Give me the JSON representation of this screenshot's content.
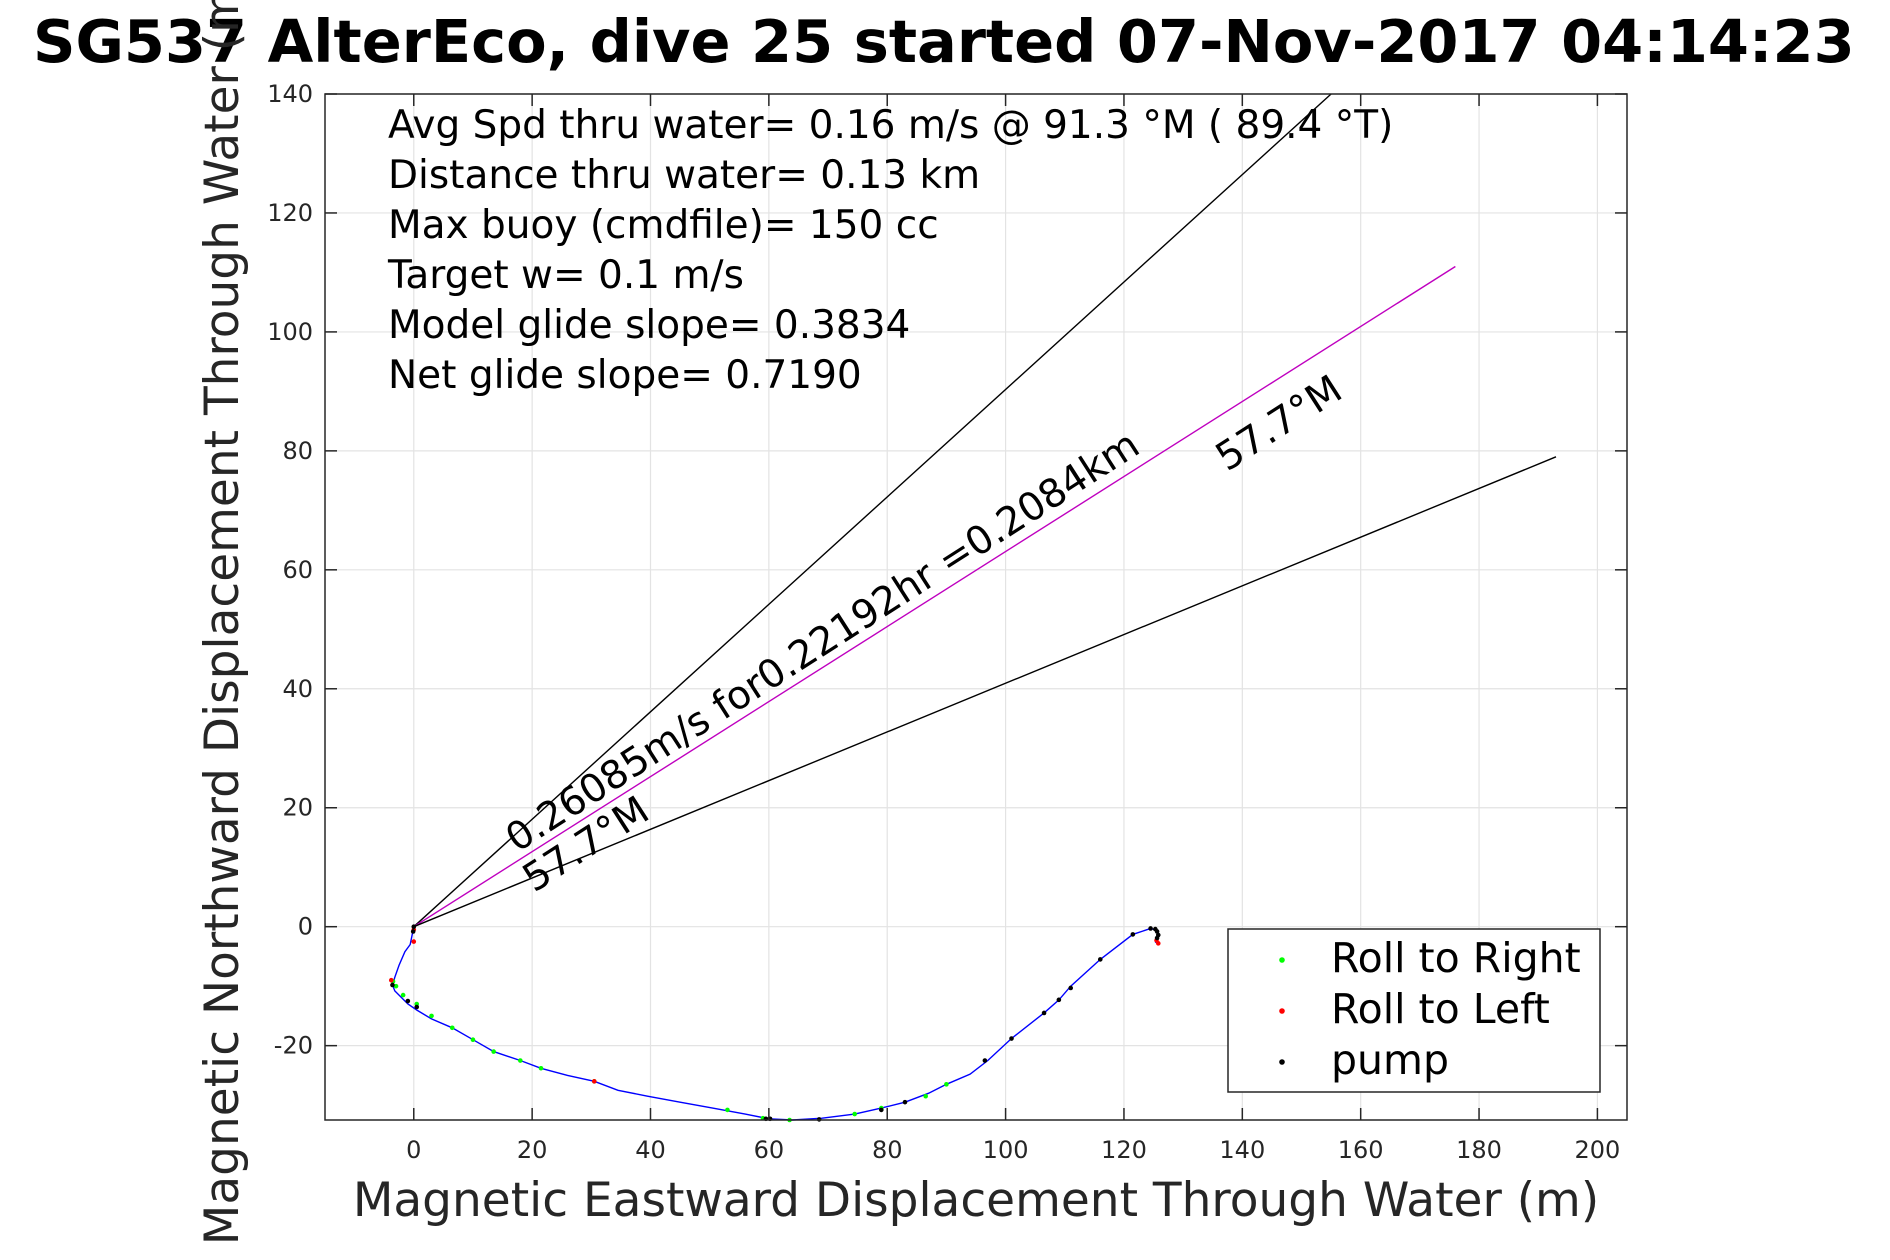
{
  "chart_data": {
    "type": "scatter",
    "title": "SG537 AlterEco, dive 25 started 07-Nov-2017 04:14:23",
    "xlabel": "Magnetic Eastward Displacement Through Water (m)",
    "ylabel": "Magnetic Northward Displacement Through Water (m)",
    "xlim": [
      -15,
      205
    ],
    "ylim": [
      -32.5,
      140
    ],
    "xticks": [
      0,
      20,
      40,
      60,
      80,
      100,
      120,
      140,
      160,
      180,
      200
    ],
    "yticks": [
      -20,
      0,
      20,
      40,
      60,
      80,
      100,
      120,
      140
    ],
    "grid": true,
    "stats": [
      "Avg Spd thru water=  0.16 m/s @  91.3 °M ( 89.4 °T)",
      "Distance thru water=  0.13 km",
      "Max buoy (cmdfile)= 150 cc",
      "Target w= 0.1 m/s",
      "Model glide slope= 0.3834",
      "Net glide slope= 0.7190"
    ],
    "annotations": {
      "speed_line": "0.26085m/s for0.22192hr =0.2084km",
      "heading_upper": "57.7°M",
      "heading_lower": "57.7°M"
    },
    "guide_lines": [
      {
        "name": "upper-bound",
        "color": "#000000",
        "from": [
          0,
          0
        ],
        "to": [
          155,
          140
        ]
      },
      {
        "name": "heading",
        "color": "#bf00bf",
        "from": [
          0,
          0
        ],
        "to": [
          176,
          111
        ]
      },
      {
        "name": "lower-bound",
        "color": "#000000",
        "from": [
          0,
          0
        ],
        "to": [
          193,
          79
        ]
      }
    ],
    "track": {
      "color": "#0000ff",
      "x": [
        0,
        -0.3,
        -0.6,
        -1.5,
        -2.5,
        -3.2,
        -3.6,
        -3.2,
        -2.2,
        -1.0,
        0.5,
        3.0,
        6.5,
        10.0,
        13.5,
        18.0,
        21.5,
        26.0,
        30.5,
        34.5,
        39.5,
        45.0,
        50.5,
        56.0,
        60.0,
        64.0,
        69.0,
        74.5,
        79.0,
        83.0,
        87.0,
        90.0,
        94.0,
        97.0,
        101.0,
        106.5,
        109.0,
        111.0,
        116.0,
        121.5,
        124.5,
        125.2,
        125.6,
        125.8,
        125.6,
        125.3
      ],
      "y": [
        0,
        -1.5,
        -3.0,
        -4.2,
        -6.5,
        -8.5,
        -9.8,
        -10.8,
        -11.8,
        -13.0,
        -14.0,
        -15.5,
        -17.0,
        -19.0,
        -21.0,
        -22.5,
        -23.8,
        -25.0,
        -26.0,
        -27.5,
        -28.5,
        -29.5,
        -30.5,
        -31.5,
        -32.3,
        -32.5,
        -32.2,
        -31.5,
        -30.5,
        -29.5,
        -28.0,
        -26.5,
        -24.8,
        -22.5,
        -18.8,
        -14.5,
        -12.3,
        -10.0,
        -5.5,
        -1.3,
        -0.3,
        -0.5,
        -1.0,
        -1.8,
        -2.3,
        -2.7
      ]
    },
    "series": [
      {
        "name": "Roll to Right",
        "color": "#00ff00",
        "x": [
          -3.5,
          -3.0,
          -1.8,
          0.5,
          3.0,
          6.5,
          10.0,
          13.5,
          18.0,
          21.5,
          30.5,
          53.0,
          59.0,
          63.5,
          74.5,
          79.0,
          86.5,
          90.0
        ],
        "y": [
          -9.2,
          -10.0,
          -11.5,
          -13.0,
          -15.0,
          -17.0,
          -19.0,
          -21.0,
          -22.5,
          -23.8,
          -26.0,
          -30.8,
          -32.2,
          -32.5,
          -31.5,
          -30.5,
          -28.5,
          -26.5
        ]
      },
      {
        "name": "Roll to Left",
        "color": "#ff0000",
        "x": [
          0.0,
          0.0,
          -3.8,
          30.5,
          125.5,
          125.8
        ],
        "y": [
          -0.5,
          -2.5,
          -9.0,
          -26.0,
          -2.3,
          -2.8
        ]
      },
      {
        "name": "pump",
        "color": "#000000",
        "x": [
          0.0,
          -0.1,
          -3.6,
          -1.0,
          0.5,
          59.5,
          60.2,
          68.5,
          79.0,
          83.0,
          96.5,
          101.0,
          106.5,
          109.0,
          111.0,
          116.0,
          121.5,
          124.5,
          125.3,
          125.6,
          125.8,
          125.6
        ],
        "y": [
          0.0,
          -0.8,
          -9.8,
          -12.5,
          -13.5,
          -32.3,
          -32.3,
          -32.4,
          -30.8,
          -29.5,
          -22.5,
          -18.8,
          -14.5,
          -12.3,
          -10.3,
          -5.5,
          -1.3,
          -0.3,
          -0.4,
          -0.8,
          -1.4,
          -1.9
        ]
      }
    ],
    "legend": {
      "position": "bottom-right",
      "entries": [
        "Roll to Right",
        "Roll to Left",
        "pump"
      ]
    }
  }
}
